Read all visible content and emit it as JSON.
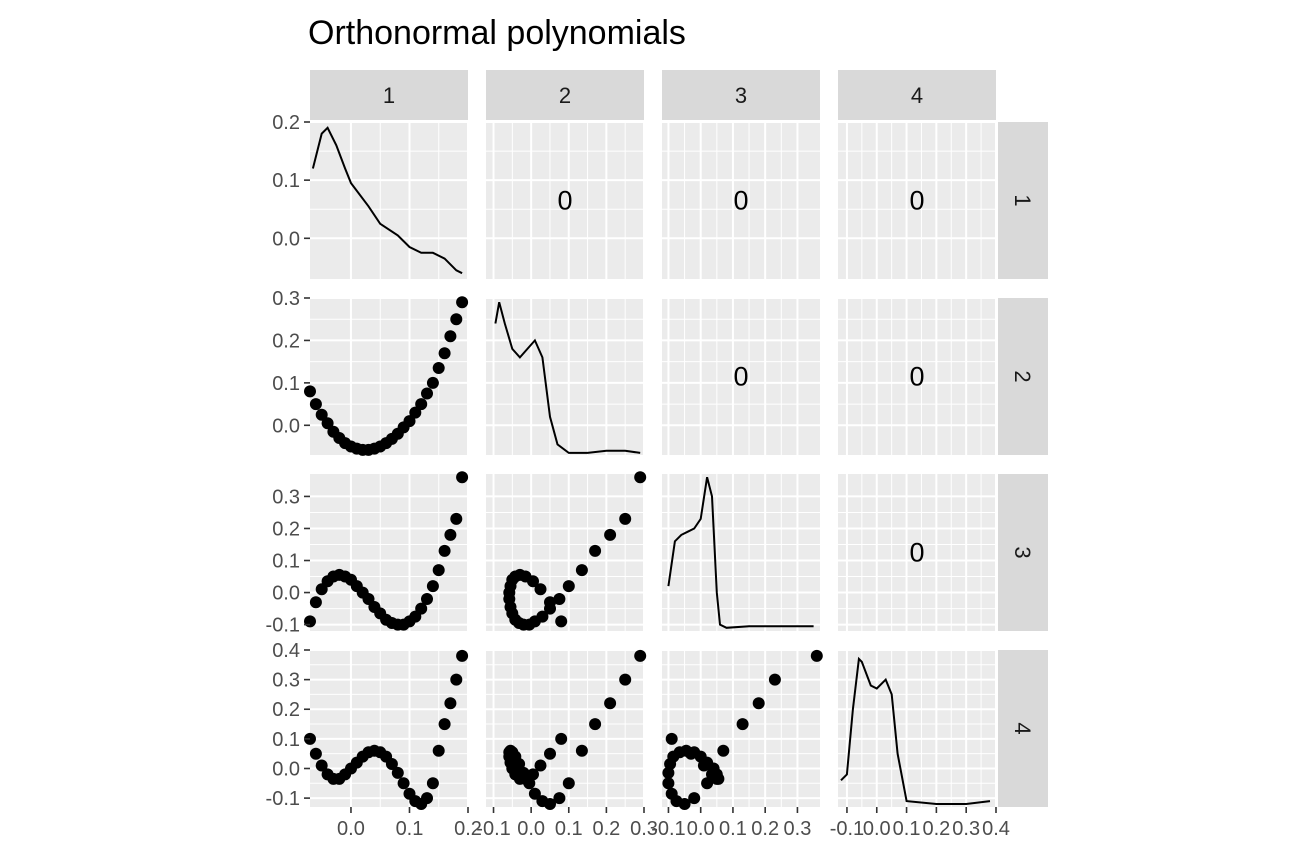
{
  "chart_data": {
    "type": "scatter",
    "title": "Orthonormal polynomials",
    "variables": [
      "1",
      "2",
      "3",
      "4"
    ],
    "column_strips": [
      "1",
      "2",
      "3",
      "4"
    ],
    "row_strips": [
      "1",
      "2",
      "3",
      "4"
    ],
    "axes": {
      "x": [
        {
          "range": [
            -0.07,
            0.2
          ],
          "ticks": [
            0.0,
            0.1,
            0.2
          ],
          "tick_labels": [
            "0.0",
            "0.1",
            "0.2"
          ]
        },
        {
          "range": [
            -0.12,
            0.3
          ],
          "ticks": [
            -0.1,
            0.0,
            0.1,
            0.2,
            0.3
          ],
          "tick_labels": [
            "-0.1",
            "0.0",
            "0.1",
            "0.2",
            "0.3"
          ]
        },
        {
          "range": [
            -0.12,
            0.37
          ],
          "ticks": [
            -0.1,
            0.0,
            0.1,
            0.2,
            0.3
          ],
          "tick_labels": [
            "-0.1",
            "0.0",
            "0.1",
            "0.2",
            "0.3"
          ]
        },
        {
          "range": [
            -0.13,
            0.4
          ],
          "ticks": [
            -0.1,
            0.0,
            0.1,
            0.2,
            0.3,
            0.4
          ],
          "tick_labels": [
            "-0.1",
            "0.0",
            "0.1",
            "0.2",
            "0.3",
            "0.4"
          ]
        }
      ],
      "y": [
        {
          "range": [
            -0.07,
            0.2
          ],
          "ticks": [
            0.0,
            0.1,
            0.2
          ],
          "tick_labels": [
            "0.0",
            "0.1",
            "0.2"
          ]
        },
        {
          "range": [
            -0.07,
            0.3
          ],
          "ticks": [
            0.0,
            0.1,
            0.2,
            0.3
          ],
          "tick_labels": [
            "0.0",
            "0.1",
            "0.2",
            "0.3"
          ]
        },
        {
          "range": [
            -0.12,
            0.37
          ],
          "ticks": [
            -0.1,
            0.0,
            0.1,
            0.2,
            0.3
          ],
          "tick_labels": [
            "-0.1",
            "0.0",
            "0.1",
            "0.2",
            "0.3"
          ]
        },
        {
          "range": [
            -0.13,
            0.4
          ],
          "ticks": [
            -0.1,
            0.0,
            0.1,
            0.2,
            0.3,
            0.4
          ],
          "tick_labels": [
            "-0.1",
            "0.0",
            "0.1",
            "0.2",
            "0.3",
            "0.4"
          ]
        }
      ]
    },
    "upper_panels": [
      {
        "row": 1,
        "col": 2,
        "text": "0"
      },
      {
        "row": 1,
        "col": 3,
        "text": "0"
      },
      {
        "row": 1,
        "col": 4,
        "text": "0"
      },
      {
        "row": 2,
        "col": 3,
        "text": "0"
      },
      {
        "row": 2,
        "col": 4,
        "text": "0"
      },
      {
        "row": 3,
        "col": 4,
        "text": "0"
      }
    ],
    "diagonal_density": [
      {
        "var": 1,
        "x": [
          -0.065,
          -0.05,
          -0.04,
          -0.025,
          -0.01,
          0.0,
          0.03,
          0.05,
          0.08,
          0.1,
          0.12,
          0.14,
          0.16,
          0.18,
          0.19
        ],
        "y": [
          0.12,
          0.18,
          0.19,
          0.16,
          0.12,
          0.095,
          0.055,
          0.025,
          0.005,
          -0.015,
          -0.025,
          -0.025,
          -0.035,
          -0.055,
          -0.06
        ]
      },
      {
        "var": 2,
        "x": [
          -0.095,
          -0.085,
          -0.07,
          -0.05,
          -0.03,
          -0.01,
          0.01,
          0.03,
          0.05,
          0.07,
          0.1,
          0.15,
          0.2,
          0.25,
          0.29
        ],
        "y": [
          0.24,
          0.29,
          0.24,
          0.18,
          0.16,
          0.18,
          0.2,
          0.16,
          0.02,
          -0.045,
          -0.065,
          -0.065,
          -0.06,
          -0.06,
          -0.065
        ]
      },
      {
        "var": 3,
        "x": [
          -0.1,
          -0.08,
          -0.06,
          -0.04,
          -0.02,
          0.0,
          0.02,
          0.035,
          0.05,
          0.06,
          0.08,
          0.15,
          0.25,
          0.35
        ],
        "y": [
          0.02,
          0.16,
          0.18,
          0.19,
          0.2,
          0.23,
          0.36,
          0.3,
          0.0,
          -0.1,
          -0.11,
          -0.105,
          -0.105,
          -0.105
        ]
      },
      {
        "var": 4,
        "x": [
          -0.12,
          -0.1,
          -0.08,
          -0.06,
          -0.05,
          -0.02,
          0.0,
          0.03,
          0.05,
          0.07,
          0.1,
          0.2,
          0.3,
          0.38
        ],
        "y": [
          -0.04,
          -0.02,
          0.2,
          0.37,
          0.36,
          0.28,
          0.27,
          0.3,
          0.25,
          0.05,
          -0.11,
          -0.12,
          -0.12,
          -0.11
        ]
      }
    ],
    "scatter": {
      "rows": [
        2,
        3,
        4
      ],
      "note": "points of polynomial k vs polynomial j, lower triangle",
      "x_p1": [
        -0.07,
        -0.06,
        -0.05,
        -0.04,
        -0.03,
        -0.02,
        -0.01,
        0.0,
        0.01,
        0.02,
        0.03,
        0.04,
        0.05,
        0.06,
        0.07,
        0.08,
        0.09,
        0.1,
        0.11,
        0.12,
        0.13,
        0.14,
        0.15,
        0.16,
        0.17,
        0.18,
        0.19
      ],
      "p2": [
        0.08,
        0.05,
        0.025,
        0.005,
        -0.015,
        -0.03,
        -0.042,
        -0.05,
        -0.055,
        -0.058,
        -0.058,
        -0.055,
        -0.05,
        -0.042,
        -0.032,
        -0.02,
        -0.005,
        0.01,
        0.03,
        0.05,
        0.075,
        0.1,
        0.135,
        0.17,
        0.21,
        0.25,
        0.29
      ],
      "p3": [
        -0.09,
        -0.03,
        0.01,
        0.035,
        0.05,
        0.055,
        0.05,
        0.04,
        0.02,
        0.0,
        -0.02,
        -0.045,
        -0.065,
        -0.085,
        -0.095,
        -0.1,
        -0.1,
        -0.09,
        -0.075,
        -0.05,
        -0.02,
        0.02,
        0.07,
        0.13,
        0.18,
        0.23,
        0.36
      ],
      "p4": [
        0.1,
        0.05,
        0.01,
        -0.02,
        -0.035,
        -0.035,
        -0.02,
        0.0,
        0.02,
        0.04,
        0.055,
        0.06,
        0.055,
        0.04,
        0.015,
        -0.015,
        -0.05,
        -0.085,
        -0.11,
        -0.12,
        -0.1,
        -0.05,
        0.06,
        0.15,
        0.22,
        0.3,
        0.38
      ]
    },
    "grid": true,
    "legend": "none"
  }
}
